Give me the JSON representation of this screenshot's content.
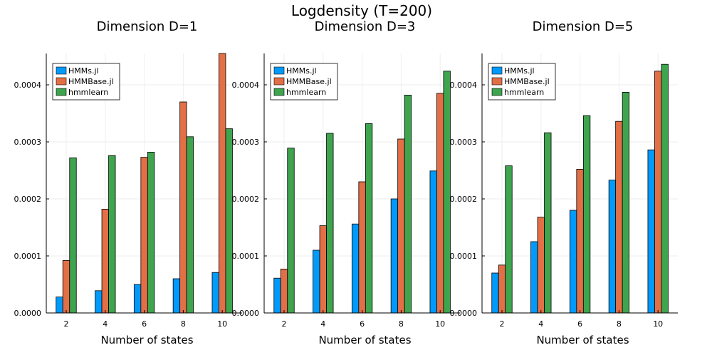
{
  "figure": {
    "title": "Logdensity (T=200)"
  },
  "chart_data": [
    {
      "type": "bar",
      "title": "Dimension D=1",
      "xlabel": "Number of states",
      "ylabel": "",
      "categories": [
        "2",
        "4",
        "6",
        "8",
        "10"
      ],
      "ylim": [
        0,
        0.000455
      ],
      "yticks": [
        "0.0000",
        "0.0001",
        "0.0002",
        "0.0003",
        "0.0004"
      ],
      "grid": true,
      "legend_position": "top-left",
      "series": [
        {
          "name": "HMMs.jl",
          "color": "#009AFA",
          "values": [
            2.8e-05,
            3.9e-05,
            5e-05,
            6e-05,
            7.1e-05
          ]
        },
        {
          "name": "HMMBase.jl",
          "color": "#E36F47",
          "values": [
            9.2e-05,
            0.000182,
            0.000273,
            0.00037,
            0.000455
          ]
        },
        {
          "name": "hmmlearn",
          "color": "#3EA44E",
          "values": [
            0.000272,
            0.000276,
            0.000282,
            0.000309,
            0.000323
          ]
        }
      ]
    },
    {
      "type": "bar",
      "title": "Dimension D=3",
      "xlabel": "Number of states",
      "ylabel": "",
      "categories": [
        "2",
        "4",
        "6",
        "8",
        "10"
      ],
      "ylim": [
        0,
        0.000455
      ],
      "yticks": [
        "0.0000",
        "0.0001",
        "0.0002",
        "0.0003",
        "0.0004"
      ],
      "grid": true,
      "legend_position": "top-left",
      "series": [
        {
          "name": "HMMs.jl",
          "color": "#009AFA",
          "values": [
            6.1e-05,
            0.00011,
            0.000156,
            0.0002,
            0.000249
          ]
        },
        {
          "name": "HMMBase.jl",
          "color": "#E36F47",
          "values": [
            7.7e-05,
            0.000153,
            0.00023,
            0.000305,
            0.000385
          ]
        },
        {
          "name": "hmmlearn",
          "color": "#3EA44E",
          "values": [
            0.000289,
            0.000315,
            0.000332,
            0.000382,
            0.000424
          ]
        }
      ]
    },
    {
      "type": "bar",
      "title": "Dimension D=5",
      "xlabel": "Number of states",
      "ylabel": "",
      "categories": [
        "2",
        "4",
        "6",
        "8",
        "10"
      ],
      "ylim": [
        0,
        0.000455
      ],
      "yticks": [
        "0.0000",
        "0.0001",
        "0.0002",
        "0.0003",
        "0.0004"
      ],
      "grid": true,
      "legend_position": "top-left",
      "series": [
        {
          "name": "HMMs.jl",
          "color": "#009AFA",
          "values": [
            7e-05,
            0.000125,
            0.00018,
            0.000233,
            0.000286
          ]
        },
        {
          "name": "HMMBase.jl",
          "color": "#E36F47",
          "values": [
            8.4e-05,
            0.000168,
            0.000252,
            0.000336,
            0.000424
          ]
        },
        {
          "name": "hmmlearn",
          "color": "#3EA44E",
          "values": [
            0.000258,
            0.000316,
            0.000346,
            0.000387,
            0.000436
          ]
        }
      ]
    }
  ]
}
